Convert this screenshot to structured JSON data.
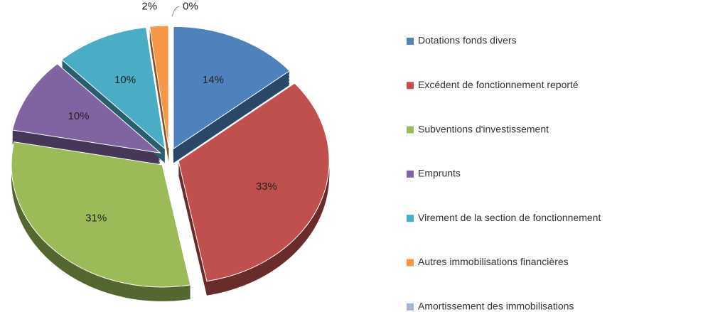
{
  "chart_data": {
    "type": "pie",
    "categories": [
      "Dotations fonds divers",
      "Excédent de fonctionnement reporté",
      "Subventions d'investissement",
      "Emprunts",
      "Virement de la section de fonctionnement",
      "Autres immobilisations financières",
      "Amortissement des immobilisations"
    ],
    "values": [
      14,
      33,
      31,
      10,
      10,
      2,
      0
    ],
    "value_labels": [
      "14%",
      "33%",
      "31%",
      "10%",
      "10%",
      "2%",
      "0%"
    ],
    "colors": [
      "#4f81bd",
      "#c0504d",
      "#9bbb59",
      "#8064a2",
      "#4bacc6",
      "#f79646",
      "#a5b6d9"
    ],
    "legend": "right"
  }
}
